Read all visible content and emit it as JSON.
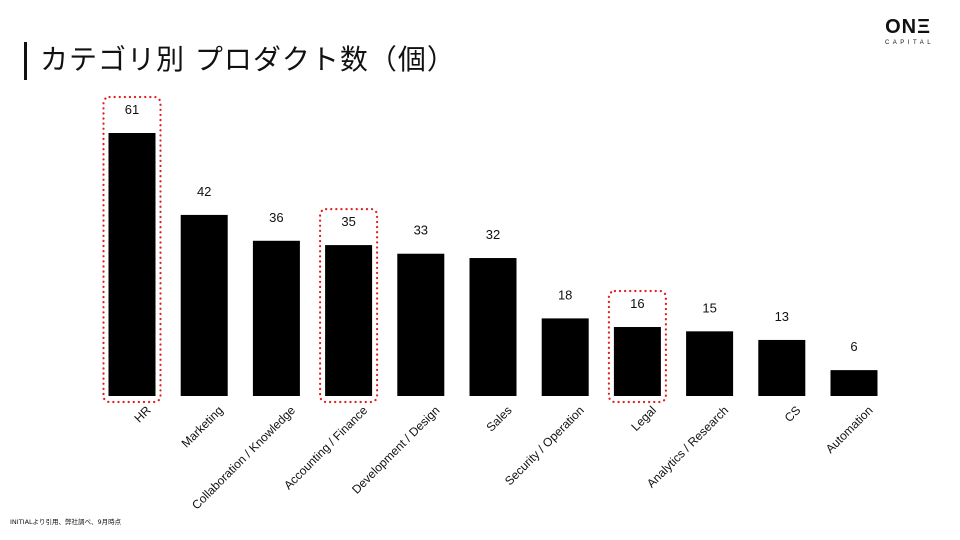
{
  "header": {
    "title": "カテゴリ別 プロダクト数（個）",
    "logo_main": "ONΞ",
    "logo_sub": "CAPITAL"
  },
  "footnote": "INITIALより引用、弊社調べ、9月時点",
  "colors": {
    "bar": "#000000",
    "highlight": "#e11d1d",
    "text": "#111111"
  },
  "chart_data": {
    "type": "bar",
    "title": "カテゴリ別 プロダクト数（個）",
    "categories": [
      "HR",
      "Marketing",
      "Collaboration / Knowledge",
      "Accounting / Finance",
      "Development / Design",
      "Sales",
      "Security / Operation",
      "Legal",
      "Analytics / Research",
      "CS",
      "Automation"
    ],
    "values": [
      61,
      42,
      36,
      35,
      33,
      32,
      18,
      16,
      15,
      13,
      6
    ],
    "highlighted": [
      "HR",
      "Accounting / Finance",
      "Legal"
    ],
    "ylim": [
      0,
      61
    ],
    "grid": false,
    "legend": "none",
    "data_labels": true
  }
}
